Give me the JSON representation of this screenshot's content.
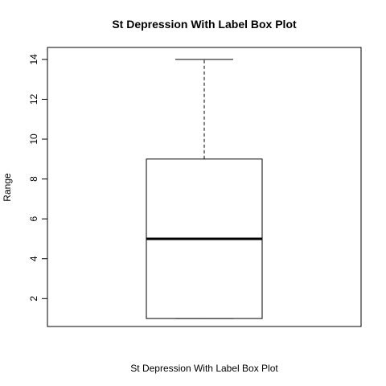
{
  "chart_data": {
    "type": "boxplot",
    "title": "St Depression With Label Box Plot",
    "xlabel": "St Depression With Label Box Plot",
    "ylabel": "Range",
    "ylim": [
      0.6,
      14.6
    ],
    "yticks": [
      2,
      4,
      6,
      8,
      10,
      12,
      14
    ],
    "ytick_labels": [
      "2",
      "4",
      "6",
      "8",
      "10",
      "12",
      "14"
    ],
    "box": {
      "min": 1,
      "q1": 1,
      "median": 5,
      "q3": 9,
      "max": 14
    },
    "grid": false,
    "legend": "none",
    "colors": {
      "box_stroke": "#000000",
      "box_fill": "#ffffff"
    }
  }
}
